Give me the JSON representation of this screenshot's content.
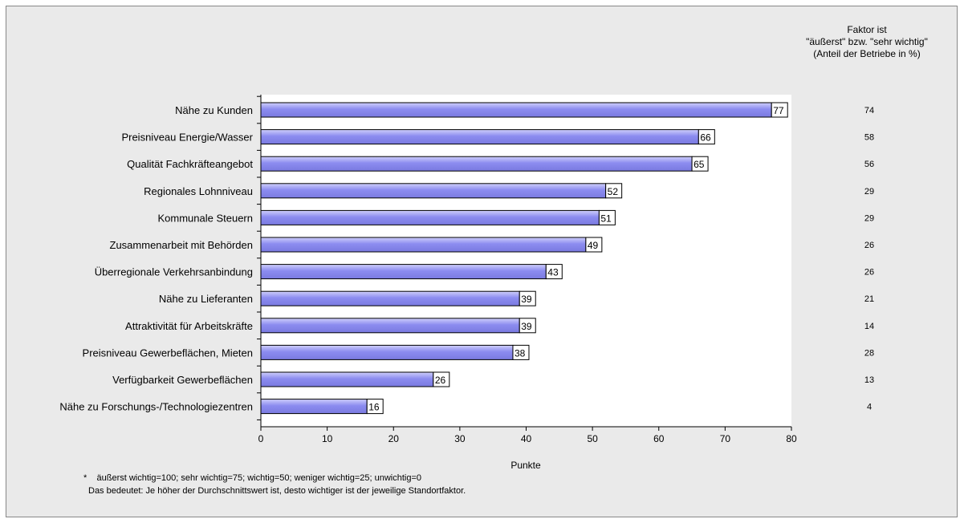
{
  "chart_data": {
    "type": "bar",
    "orientation": "horizontal",
    "categories": [
      "Nähe zu Kunden",
      "Preisniveau Energie/Wasser",
      "Qualität Fachkräfteangebot",
      "Regionales Lohnniveau",
      "Kommunale Steuern",
      "Zusammenarbeit mit Behörden",
      "Überregionale Verkehrsanbindung",
      "Nähe zu Lieferanten",
      "Attraktivität für Arbeitskräfte",
      "Preisniveau Gewerbeflächen, Mieten",
      "Verfügbarkeit Gewerbeflächen",
      "Nähe zu Forschungs-/Technologiezentren"
    ],
    "values": [
      77,
      66,
      65,
      52,
      51,
      49,
      43,
      39,
      39,
      38,
      26,
      16
    ],
    "xlabel": "Punkte",
    "xlim": [
      0,
      80
    ],
    "xticks": [
      0,
      10,
      20,
      30,
      40,
      50,
      60,
      70,
      80
    ],
    "bar_color": "#8c8cf0",
    "bar_color_light": "#cfcffb",
    "grid": false,
    "right_column": {
      "header": [
        "Faktor ist",
        "\"äußerst\" bzw. \"sehr wichtig\"",
        "(Anteil der Betriebe in %)"
      ],
      "values": [
        74,
        58,
        56,
        29,
        29,
        26,
        26,
        21,
        14,
        28,
        13,
        4
      ]
    }
  },
  "footnote": {
    "marker": "*",
    "line1": "äußerst wichtig=100; sehr wichtig=75; wichtig=50; weniger wichtig=25; unwichtig=0",
    "line2": "Das bedeutet: Je höher der Durchschnittswert ist, desto wichtiger ist der jeweilige Standortfaktor."
  }
}
